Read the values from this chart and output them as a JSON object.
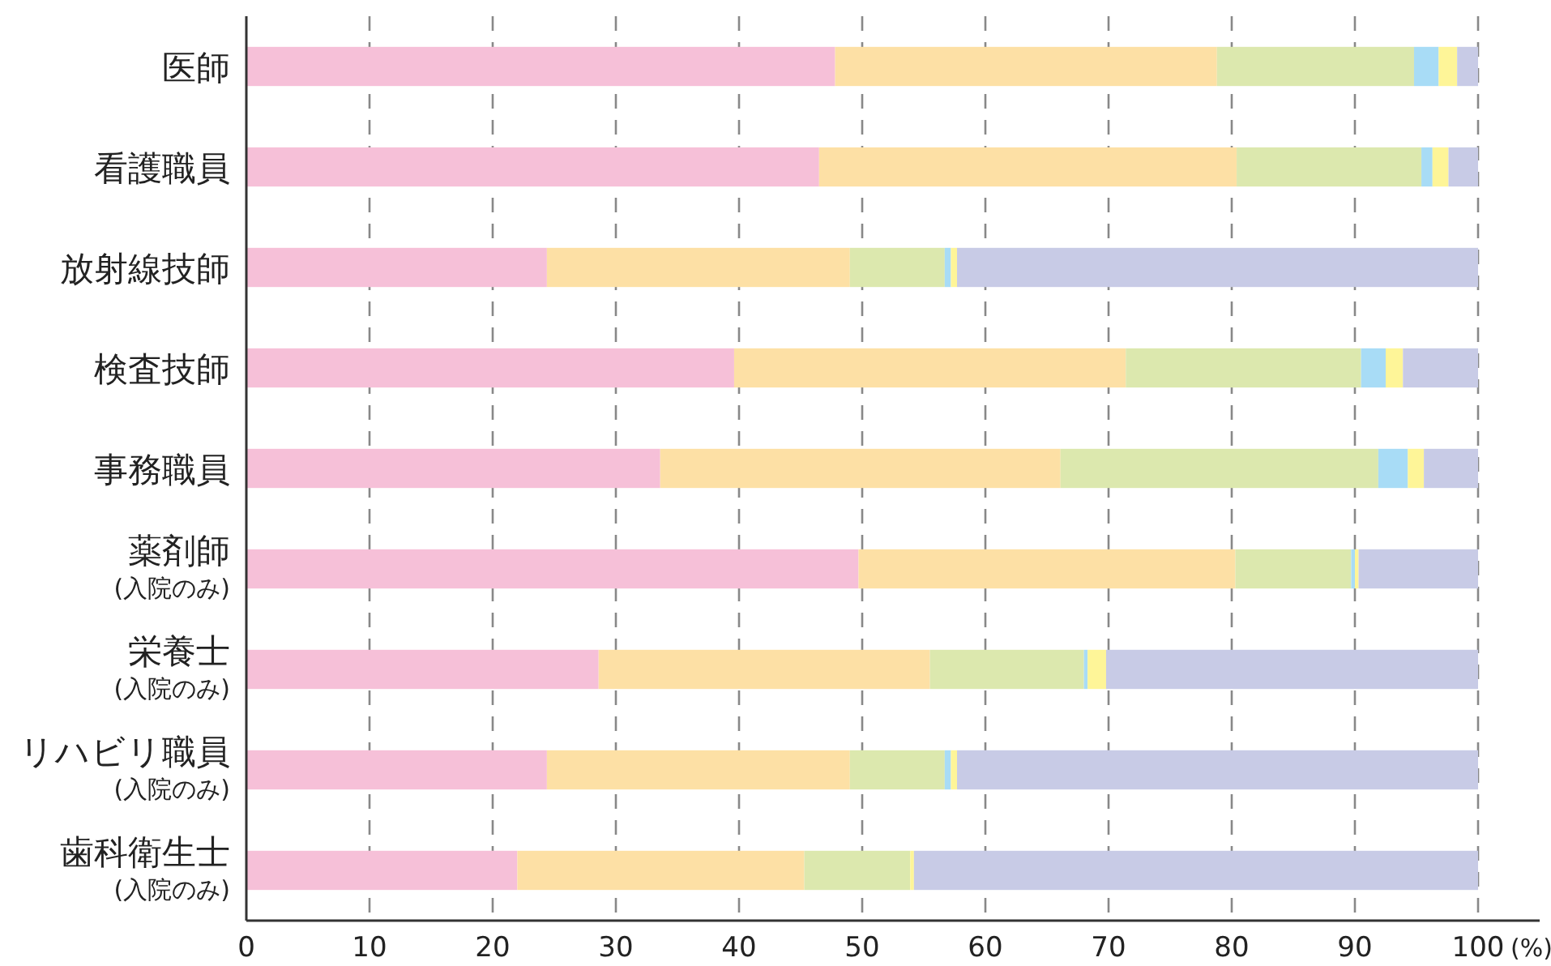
{
  "chart_data": {
    "type": "bar",
    "orientation": "horizontal",
    "stacked": true,
    "xlabel": "(%)",
    "categories": [
      "医師",
      "看護職員",
      "放射線技師",
      "検査技師",
      "事務職員",
      "薬剤師\n(入院のみ)",
      "栄養士\n(入院のみ)",
      "リハビリ職員\n(入院のみ)",
      "歯科衛生士\n(入院のみ)"
    ],
    "series": [
      {
        "color": "#f6c0d8",
        "values": [
          47.8,
          46.5,
          24.4,
          39.6,
          33.6,
          49.7,
          28.6,
          24.4,
          22.0
        ]
      },
      {
        "color": "#fde0a5",
        "values": [
          31.0,
          33.9,
          24.6,
          31.8,
          32.5,
          30.6,
          26.9,
          24.6,
          23.3
        ]
      },
      {
        "color": "#dce8ae",
        "values": [
          16.0,
          15.0,
          7.7,
          19.1,
          25.8,
          9.4,
          12.5,
          7.7,
          8.6
        ]
      },
      {
        "color": "#a8dcf6",
        "values": [
          2.0,
          0.9,
          0.5,
          2.0,
          2.4,
          0.3,
          0.3,
          0.5,
          null
        ]
      },
      {
        "color": "#fef598",
        "values": [
          1.5,
          1.3,
          0.5,
          1.4,
          1.3,
          0.3,
          1.5,
          0.5,
          0.3
        ]
      },
      {
        "color": "#c8cbe6",
        "values": [
          1.7,
          2.4,
          42.3,
          6.1,
          4.4,
          9.7,
          30.2,
          42.3,
          45.8
        ]
      }
    ],
    "xlim": [
      0,
      105
    ],
    "xticks": [
      0,
      10,
      20,
      30,
      40,
      50,
      60,
      70,
      80,
      90,
      100
    ],
    "grid": "x"
  }
}
